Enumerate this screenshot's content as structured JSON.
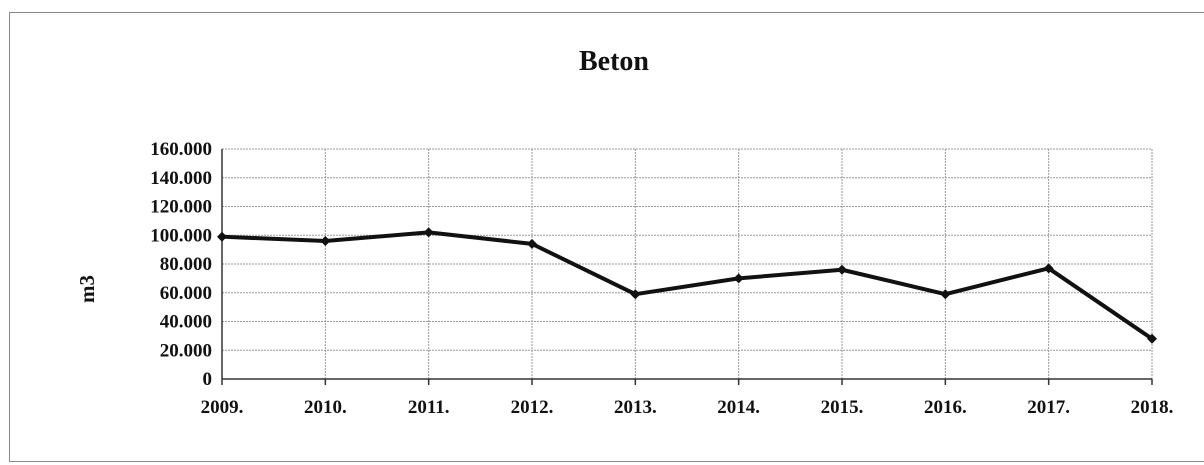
{
  "chart_data": {
    "type": "line",
    "title": "Beton",
    "xlabel": "",
    "ylabel": "m3",
    "categories": [
      "2009.",
      "2010.",
      "2011.",
      "2012.",
      "2013.",
      "2014.",
      "2015.",
      "2016.",
      "2017.",
      "2018."
    ],
    "series": [
      {
        "values": [
          99000,
          96000,
          102000,
          94000,
          59000,
          70000,
          76000,
          59000,
          77000,
          28000
        ]
      }
    ],
    "ylim": [
      0,
      160000
    ],
    "y_ticks": [
      0,
      20000,
      40000,
      60000,
      80000,
      100000,
      120000,
      140000,
      160000
    ],
    "y_tick_labels": [
      "0",
      "20.000",
      "40.000",
      "60.000",
      "80.000",
      "100.000",
      "120.000",
      "140.000",
      "160.000"
    ],
    "grid": true,
    "legend": "none",
    "line_color": "#111111"
  }
}
